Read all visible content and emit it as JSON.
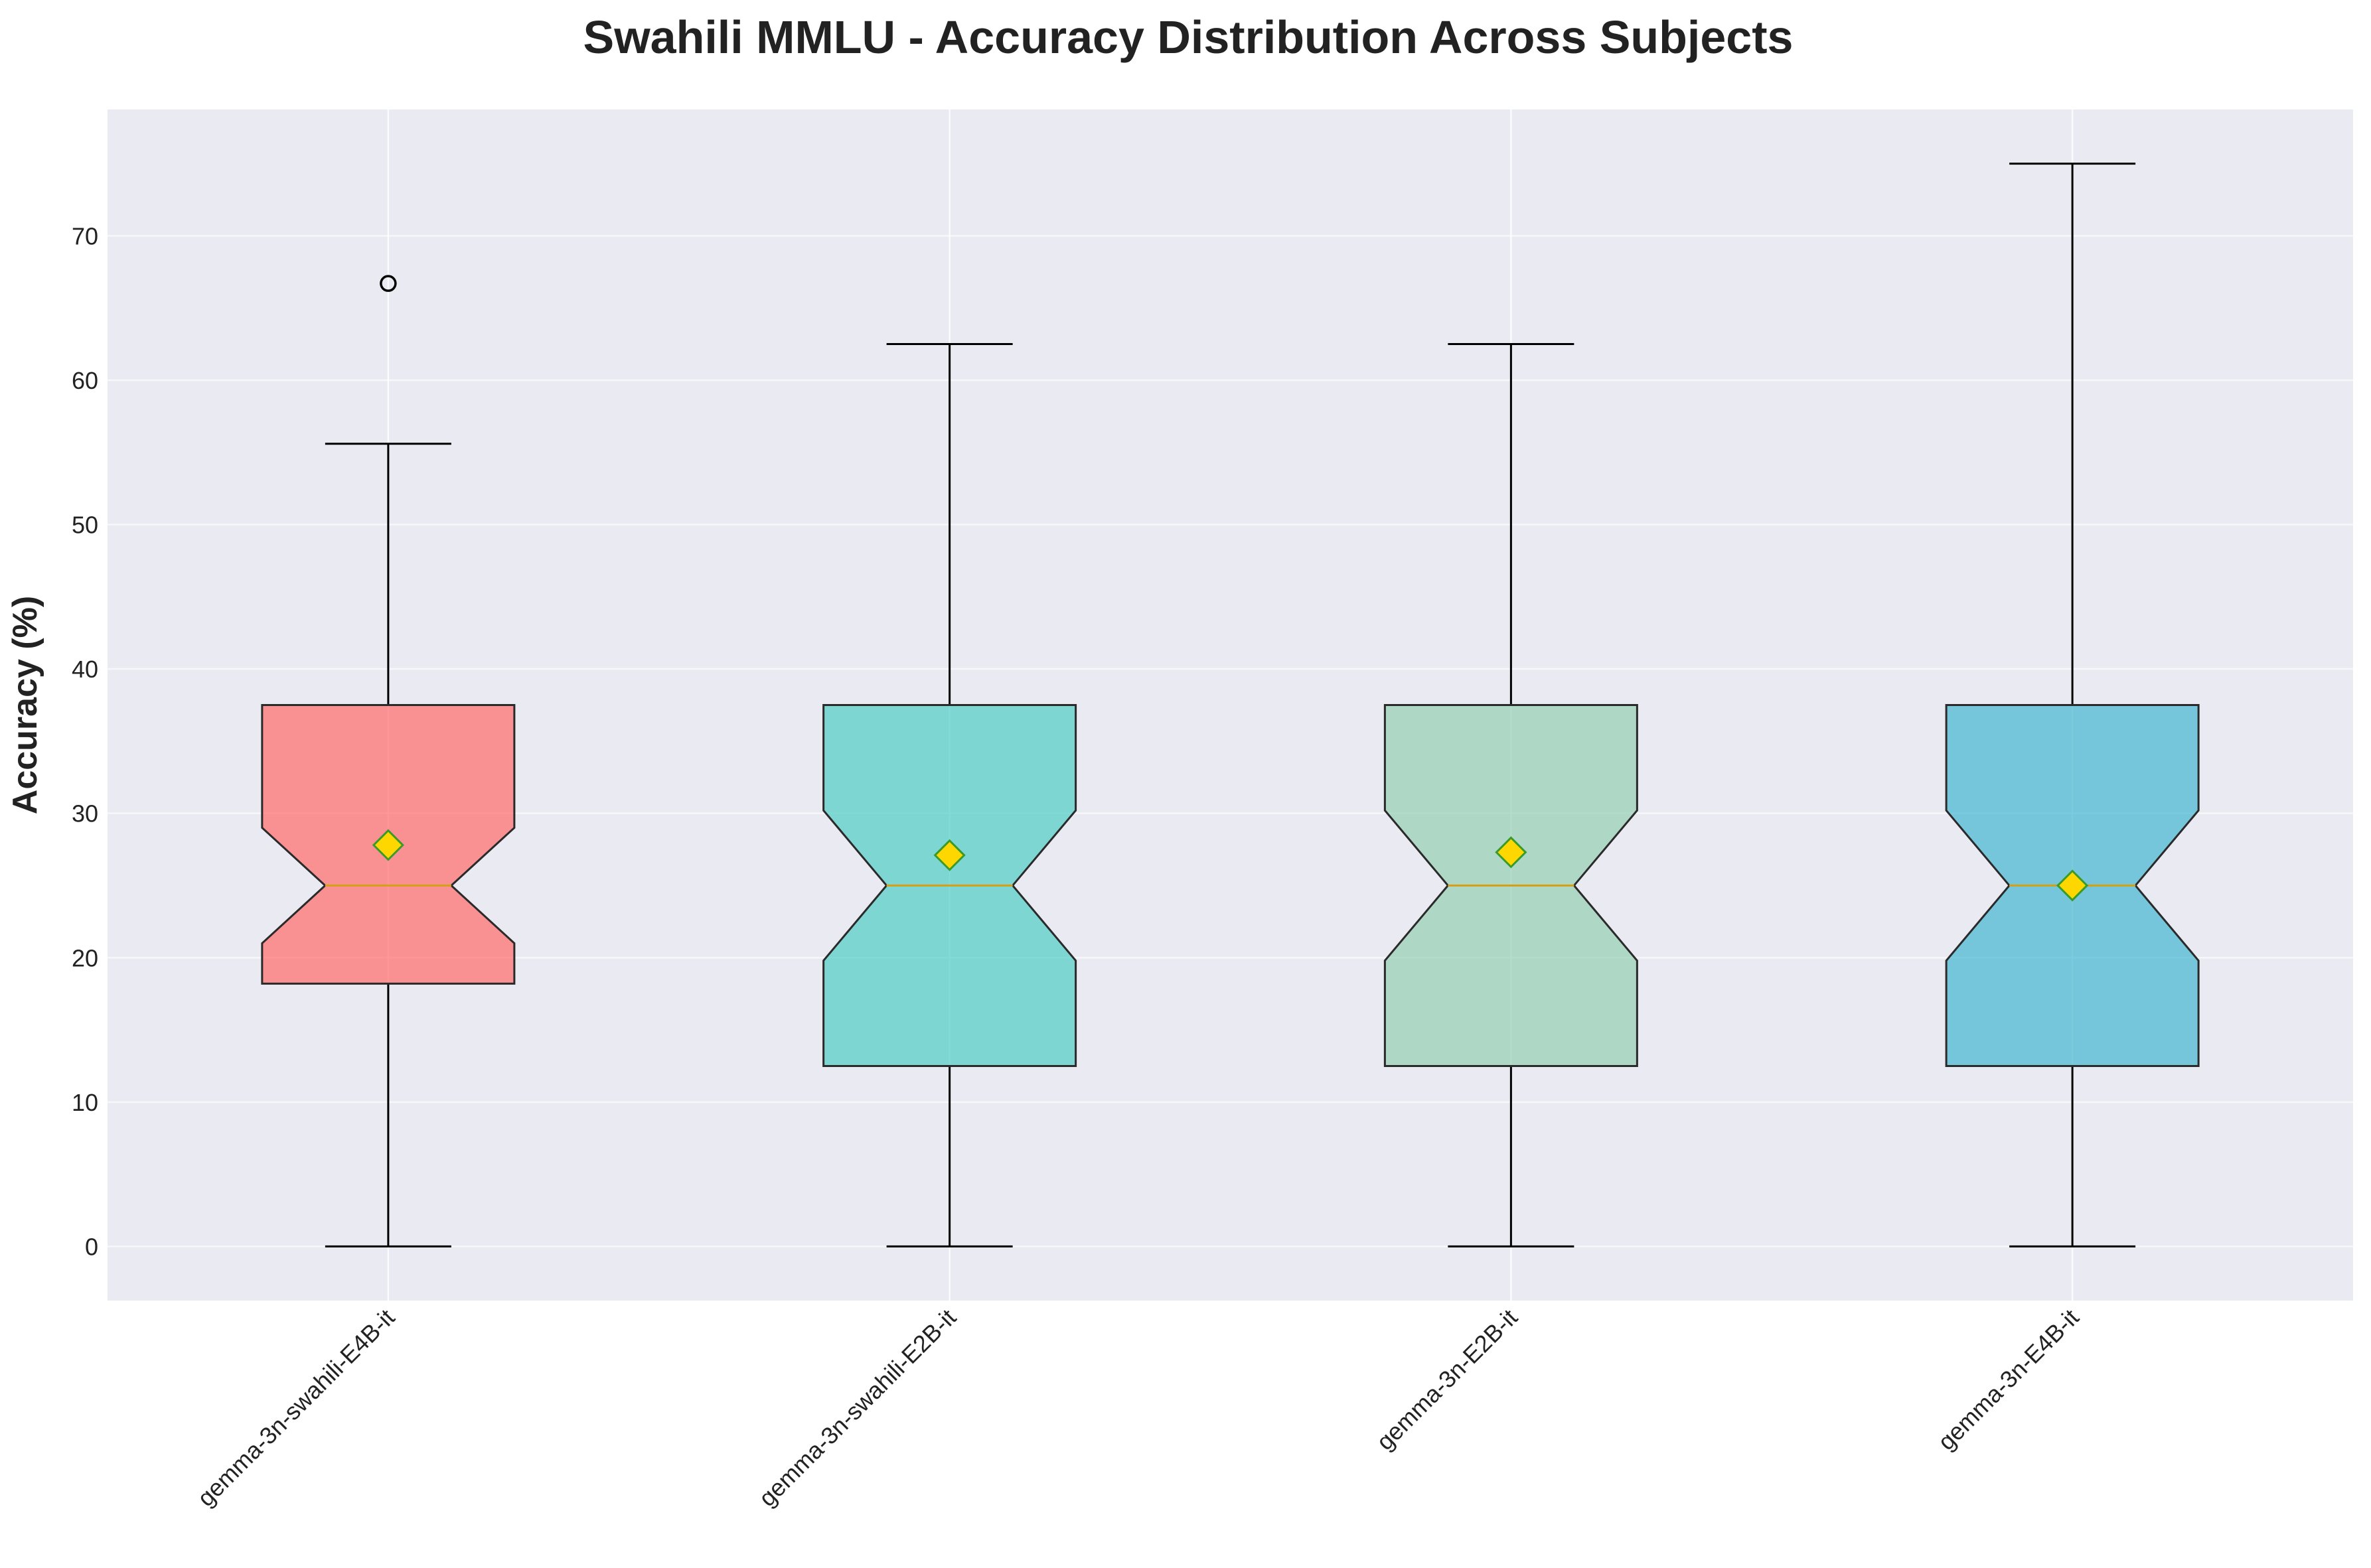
{
  "chart_data": {
    "type": "boxplot",
    "title": "Swahili MMLU - Accuracy Distribution Across Subjects",
    "ylabel": "Accuracy (%)",
    "xlabel": "",
    "ylim": [
      -3.75,
      78.75
    ],
    "yticks": [
      0,
      10,
      20,
      30,
      40,
      50,
      60,
      70
    ],
    "grid": true,
    "notched": true,
    "show_means": true,
    "mean_marker_color": "#FFD700",
    "mean_marker_edge": "#3a9a2a",
    "median_color": "#d4a017",
    "plot_bg": "#eaeaf2",
    "series": [
      {
        "name": "gemma-3n-swahili-E4B-it",
        "color": "#FF6B6B",
        "whisker_low": 0,
        "q1": 18.2,
        "median": 25,
        "q3": 37.5,
        "whisker_high": 55.6,
        "mean": 27.8,
        "notch_low": 21.0,
        "notch_high": 29.0,
        "outliers": [
          66.7
        ]
      },
      {
        "name": "gemma-3n-swahili-E2B-it",
        "color": "#4ECDC4",
        "whisker_low": 0,
        "q1": 12.5,
        "median": 25,
        "q3": 37.5,
        "whisker_high": 62.5,
        "mean": 27.1,
        "notch_low": 19.8,
        "notch_high": 30.2,
        "outliers": []
      },
      {
        "name": "gemma-3n-E2B-it",
        "color": "#96CEB4",
        "whisker_low": 0,
        "q1": 12.5,
        "median": 25,
        "q3": 37.5,
        "whisker_high": 62.5,
        "mean": 27.3,
        "notch_low": 19.8,
        "notch_high": 30.2,
        "outliers": []
      },
      {
        "name": "gemma-3n-E4B-it",
        "color": "#45B7D1",
        "whisker_low": 0,
        "q1": 12.5,
        "median": 25,
        "q3": 37.5,
        "whisker_high": 75,
        "mean": 25.0,
        "notch_low": 19.8,
        "notch_high": 30.2,
        "outliers": []
      }
    ]
  }
}
